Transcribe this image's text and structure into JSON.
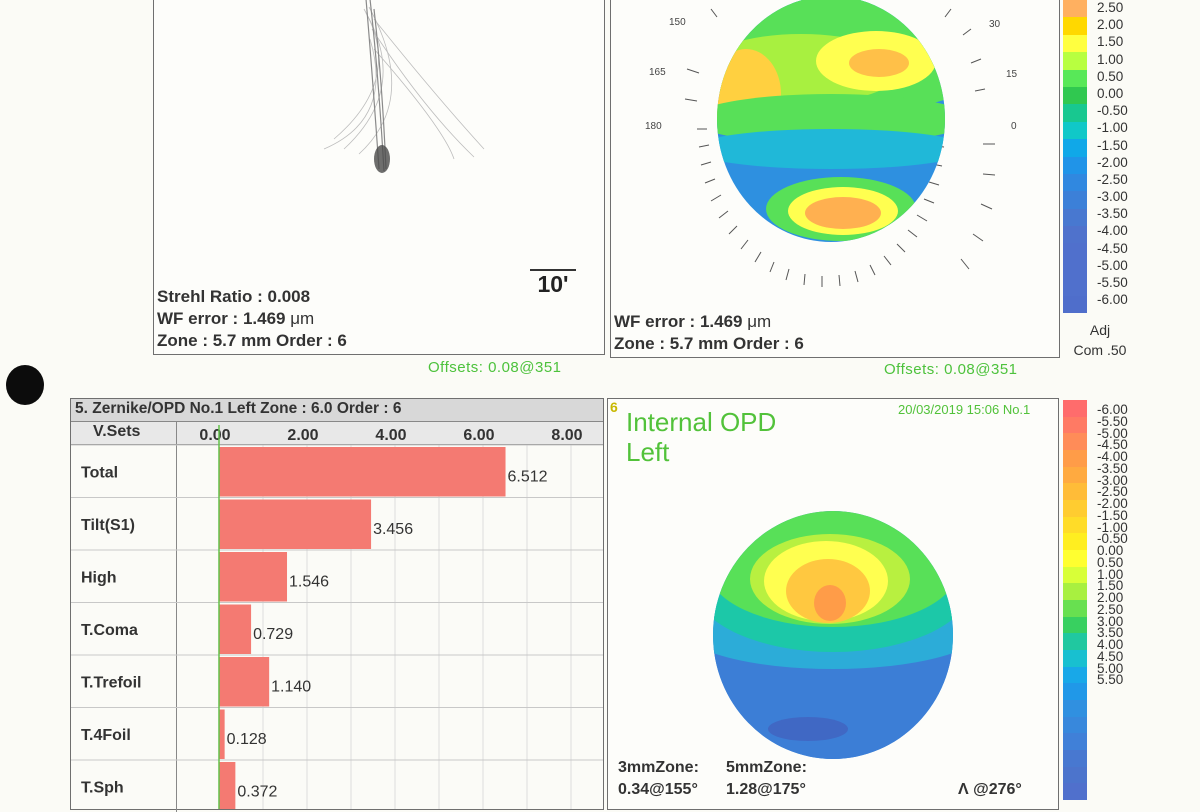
{
  "psf_panel": {
    "strehl_label": "Strehl Ratio :",
    "strehl_value": "0.008",
    "wf_label": "WF error :",
    "wf_value": "1.469",
    "wf_unit": "μm",
    "zone_text": "Zone : 5.7 mm Order  :  6",
    "scale_bar": "10'"
  },
  "wavefront_panel": {
    "wf_label": "WF error :",
    "wf_value": "1.469",
    "wf_unit": "μm",
    "zone_text": "Zone : 5.7 mm Order  :  6",
    "angle_labels": [
      "150",
      "165",
      "180",
      "30",
      "15",
      "0"
    ]
  },
  "top_scale": {
    "values": [
      "2.50",
      "2.00",
      "1.50",
      "1.00",
      "0.50",
      "0.00",
      "-0.50",
      "-1.00",
      "-1.50",
      "-2.00",
      "-2.50",
      "-3.00",
      "-3.50",
      "-4.00",
      "-4.50",
      "-5.00",
      "-5.50",
      "-6.00"
    ],
    "colors": [
      "#ffb060",
      "#ffd800",
      "#ffff40",
      "#b8ff40",
      "#58e858",
      "#30c850",
      "#18c890",
      "#10c8c8",
      "#10a8e8",
      "#2094e8",
      "#3088e0",
      "#3c80d8",
      "#4878d0",
      "#4f72cc",
      "#5070cc",
      "#5070cc",
      "#5070cc",
      "#4f6ecb"
    ],
    "footer_1": "Adj",
    "footer_2": "Com .50"
  },
  "offsets_left": "Offsets: 0.08@351",
  "offsets_right": "Offsets: 0.08@351",
  "zernike": {
    "title": "5. Zernike/OPD No.1 Left Zone : 6.0 Order : 6",
    "col_header": "V.Sets",
    "ticks": [
      "0.00",
      "2.00",
      "4.00",
      "6.00",
      "8.00"
    ],
    "bar_color": "#f47a72"
  },
  "chart_data": {
    "type": "bar",
    "orientation": "horizontal",
    "categories": [
      "Total",
      "Tilt(S1)",
      "High",
      "T.Coma",
      "T.Trefoil",
      "T.4Foil",
      "T.Sph"
    ],
    "values": [
      6.512,
      3.456,
      1.546,
      0.729,
      1.14,
      0.128,
      0.372
    ],
    "value_labels": [
      "6.512",
      "3.456",
      "1.546",
      "0.729",
      "1.140",
      "0.128",
      "0.372"
    ],
    "xlim": [
      0,
      8
    ],
    "title": "5. Zernike/OPD No.1 Left Zone : 6.0 Order : 6"
  },
  "internal_panel": {
    "badge": "6",
    "title_1": "Internal OPD",
    "title_2": "Left",
    "datetime": "20/03/2019 15:06 No.1",
    "zone3_label": "3mmZone:",
    "zone3_value": "0.34@155°",
    "zone5_label": "5mmZone:",
    "zone5_value": "1.28@175°",
    "astig": "Λ @276°"
  },
  "bottom_scale": {
    "values": [
      "-6.00",
      "-5.50",
      "-5.00",
      "-4.50",
      "-4.00",
      "-3.50",
      "-3.00",
      "-2.50",
      "-2.00",
      "-1.50",
      "-1.00",
      "-0.50",
      "0.00",
      "0.50",
      "1.00",
      "1.50",
      "2.00",
      "2.50",
      "3.00",
      "3.50",
      "4.00",
      "4.50",
      "5.00",
      "5.50"
    ],
    "colors": [
      "#ff6c6c",
      "#ff7a64",
      "#ff8c58",
      "#ff9c48",
      "#ffaa40",
      "#ffbc38",
      "#ffcc30",
      "#ffdc28",
      "#ffee20",
      "#ffff30",
      "#d8ff38",
      "#a8f040",
      "#68e050",
      "#38d060",
      "#20c8a0",
      "#18c0d0",
      "#18a8e8",
      "#2098e8",
      "#3090e0",
      "#3888dc",
      "#4080d8",
      "#4878d0",
      "#4c74cc",
      "#5070cc"
    ]
  }
}
